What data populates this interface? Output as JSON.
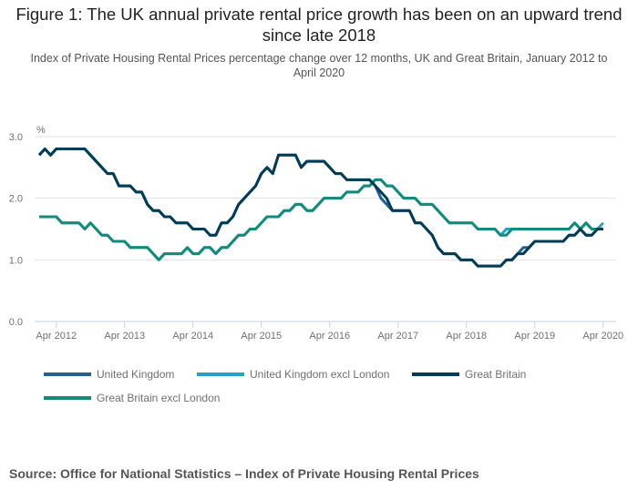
{
  "chart_data": {
    "type": "line",
    "title": "Figure 1: The UK annual private rental price growth has been on an upward trend since late 2018",
    "subtitle": "Index of Private Housing Rental Prices percentage change over 12 months, UK and Great Britain, January 2012 to April 2020",
    "ylabel": "%",
    "xlabel": "",
    "ylim": [
      0,
      3.0
    ],
    "yticks": [
      0.0,
      1.0,
      2.0,
      3.0
    ],
    "ytick_labels": [
      "0.0",
      "1.0",
      "2.0",
      "3.0"
    ],
    "x_start": "Jan 2012",
    "x_end": "Apr 2020",
    "xtick_labels": [
      "Apr 2012",
      "Apr 2013",
      "Apr 2014",
      "Apr 2015",
      "Apr 2016",
      "Apr 2017",
      "Apr 2018",
      "Apr 2019",
      "Apr 2020"
    ],
    "xtick_month_index": [
      3,
      15,
      27,
      39,
      51,
      63,
      75,
      87,
      99
    ],
    "grid": true,
    "legend_position": "bottom",
    "series": [
      {
        "name": "United Kingdom",
        "color": "#206095",
        "values": [
          2.7,
          2.8,
          2.7,
          2.8,
          2.8,
          2.8,
          2.8,
          2.8,
          2.8,
          2.7,
          2.6,
          2.5,
          2.4,
          2.4,
          2.2,
          2.2,
          2.2,
          2.1,
          2.1,
          1.9,
          1.8,
          1.8,
          1.7,
          1.7,
          1.6,
          1.6,
          1.6,
          1.5,
          1.5,
          1.5,
          1.4,
          1.4,
          1.6,
          1.6,
          1.7,
          1.9,
          2.0,
          2.1,
          2.2,
          2.4,
          2.5,
          2.4,
          2.7,
          2.7,
          2.7,
          2.7,
          2.5,
          2.6,
          2.6,
          2.6,
          2.6,
          2.5,
          2.4,
          2.4,
          2.3,
          2.3,
          2.3,
          2.3,
          2.3,
          2.2,
          2.0,
          1.9,
          1.8,
          1.8,
          1.8,
          1.8,
          1.6,
          1.6,
          1.5,
          1.4,
          1.2,
          1.1,
          1.1,
          1.1,
          1.0,
          1.0,
          1.0,
          0.9,
          0.9,
          0.9,
          0.9,
          0.9,
          1.0,
          1.0,
          1.1,
          1.2,
          1.2,
          1.3,
          1.3,
          1.3,
          1.3,
          1.3,
          1.3,
          1.4,
          1.4,
          1.5,
          1.4,
          1.4,
          1.5,
          1.5
        ]
      },
      {
        "name": "United Kingdom excl London",
        "color": "#27a0cc",
        "values": [
          1.7,
          1.7,
          1.7,
          1.7,
          1.6,
          1.6,
          1.6,
          1.6,
          1.5,
          1.6,
          1.5,
          1.4,
          1.4,
          1.3,
          1.3,
          1.3,
          1.2,
          1.2,
          1.2,
          1.2,
          1.1,
          1.0,
          1.1,
          1.1,
          1.1,
          1.1,
          1.2,
          1.1,
          1.1,
          1.2,
          1.2,
          1.1,
          1.2,
          1.2,
          1.3,
          1.4,
          1.4,
          1.5,
          1.5,
          1.6,
          1.7,
          1.7,
          1.7,
          1.8,
          1.8,
          1.9,
          1.9,
          1.8,
          1.8,
          1.9,
          2.0,
          2.0,
          2.0,
          2.0,
          2.1,
          2.1,
          2.1,
          2.2,
          2.2,
          2.3,
          2.3,
          2.2,
          2.2,
          2.1,
          2.0,
          2.0,
          2.0,
          1.9,
          1.9,
          1.9,
          1.8,
          1.7,
          1.6,
          1.6,
          1.6,
          1.6,
          1.6,
          1.5,
          1.5,
          1.5,
          1.5,
          1.4,
          1.5,
          1.5,
          1.5,
          1.5,
          1.5,
          1.5,
          1.5,
          1.5,
          1.5,
          1.5,
          1.5,
          1.5,
          1.6,
          1.5,
          1.6,
          1.5,
          1.5,
          1.6
        ]
      },
      {
        "name": "Great Britain",
        "color": "#003c57",
        "values": [
          2.7,
          2.8,
          2.7,
          2.8,
          2.8,
          2.8,
          2.8,
          2.8,
          2.8,
          2.7,
          2.6,
          2.5,
          2.4,
          2.4,
          2.2,
          2.2,
          2.2,
          2.1,
          2.1,
          1.9,
          1.8,
          1.8,
          1.7,
          1.7,
          1.6,
          1.6,
          1.6,
          1.5,
          1.5,
          1.5,
          1.4,
          1.4,
          1.6,
          1.6,
          1.7,
          1.9,
          2.0,
          2.1,
          2.2,
          2.4,
          2.5,
          2.4,
          2.7,
          2.7,
          2.7,
          2.7,
          2.5,
          2.6,
          2.6,
          2.6,
          2.6,
          2.5,
          2.4,
          2.4,
          2.3,
          2.3,
          2.3,
          2.3,
          2.3,
          2.2,
          2.1,
          2.0,
          1.8,
          1.8,
          1.8,
          1.8,
          1.6,
          1.6,
          1.5,
          1.4,
          1.2,
          1.1,
          1.1,
          1.1,
          1.0,
          1.0,
          1.0,
          0.9,
          0.9,
          0.9,
          0.9,
          0.9,
          1.0,
          1.0,
          1.1,
          1.1,
          1.2,
          1.3,
          1.3,
          1.3,
          1.3,
          1.3,
          1.3,
          1.4,
          1.4,
          1.5,
          1.4,
          1.4,
          1.5,
          1.5
        ]
      },
      {
        "name": "Great Britain excl London",
        "color": "#118c7b",
        "values": [
          1.7,
          1.7,
          1.7,
          1.7,
          1.6,
          1.6,
          1.6,
          1.6,
          1.5,
          1.6,
          1.5,
          1.4,
          1.4,
          1.3,
          1.3,
          1.3,
          1.2,
          1.2,
          1.2,
          1.2,
          1.1,
          1.0,
          1.1,
          1.1,
          1.1,
          1.1,
          1.2,
          1.1,
          1.1,
          1.2,
          1.2,
          1.1,
          1.2,
          1.2,
          1.3,
          1.4,
          1.4,
          1.5,
          1.5,
          1.6,
          1.7,
          1.7,
          1.7,
          1.8,
          1.8,
          1.9,
          1.9,
          1.8,
          1.8,
          1.9,
          2.0,
          2.0,
          2.0,
          2.0,
          2.1,
          2.1,
          2.1,
          2.2,
          2.2,
          2.3,
          2.3,
          2.2,
          2.2,
          2.1,
          2.0,
          2.0,
          2.0,
          1.9,
          1.9,
          1.9,
          1.8,
          1.7,
          1.6,
          1.6,
          1.6,
          1.6,
          1.6,
          1.5,
          1.5,
          1.5,
          1.5,
          1.4,
          1.4,
          1.5,
          1.5,
          1.5,
          1.5,
          1.5,
          1.5,
          1.5,
          1.5,
          1.5,
          1.5,
          1.5,
          1.6,
          1.5,
          1.6,
          1.5,
          1.5,
          1.5
        ]
      }
    ]
  },
  "source": "Source: Office for National Statistics – Index of Private Housing Rental Prices"
}
